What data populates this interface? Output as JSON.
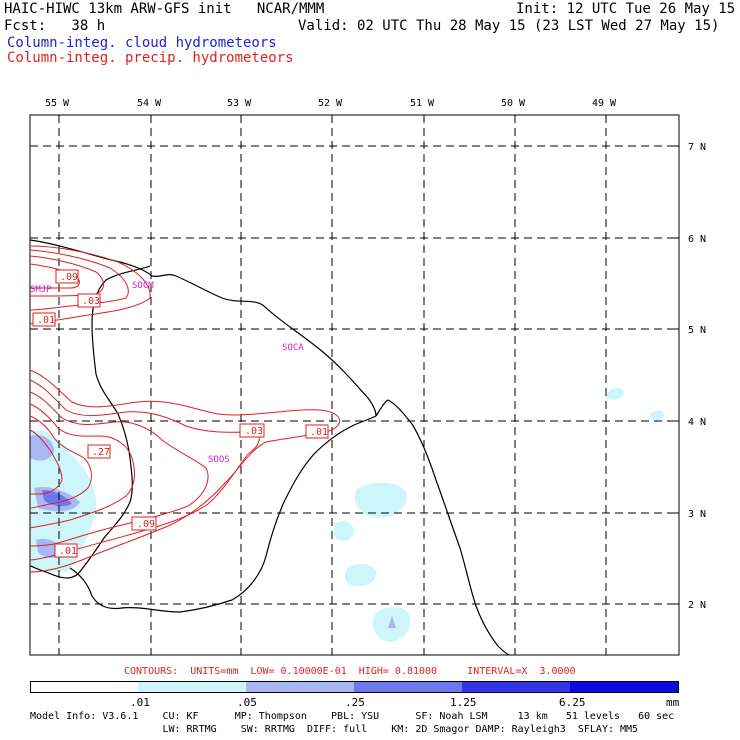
{
  "header": {
    "title": "HAIC-HIWC 13km ARW-GFS init   NCAR/MMM",
    "init": "Init: 12 UTC Tue 26 May 15",
    "fcst": "Fcst:   38 h",
    "valid": "Valid: 02 UTC Thu 28 May 15 (23 LST Wed 27 May 15)",
    "legend_cloud": "Column-integ. cloud hydrometeors",
    "legend_precip": "Column-integ. precip. hydrometeors"
  },
  "map": {
    "lon_labels": [
      "55 W",
      "54 W",
      "53 W",
      "52 W",
      "51 W",
      "50 W",
      "49 W"
    ],
    "lat_labels": [
      "7 N",
      "6 N",
      "5 N",
      "4 N",
      "3 N",
      "2 N"
    ],
    "stations": [
      "SMJP",
      "SOCM",
      "SOCA",
      "SOOS"
    ],
    "contour_labels": [
      ".09",
      ".03",
      ".01",
      ".27",
      ".03",
      ".01",
      ".09",
      ".01"
    ]
  },
  "contour_info": "CONTOURS:  UNITS=mm  LOW= 0.10000E-01  HIGH= 0.81000     INTERVAL=X  3.0000",
  "colorbar": {
    "labels": [
      ".01",
      ".05",
      ".25",
      "1.25",
      "6.25"
    ],
    "units": "mm",
    "colors": [
      "#ffffff",
      "#ccf6fa",
      "#a8b8f4",
      "#6c78ee",
      "#3434e8",
      "#0a0ae0"
    ]
  },
  "model_info": {
    "line1": "Model Info: V3.6.1    CU: KF      MP: Thompson    PBL: YSU      SF: Noah LSM     13 km   51 levels   60 sec",
    "line2": "                      LW: RRTMG    SW: RRTMG  DIFF: full    KM: 2D Smagor DAMP: Rayleigh3  SFLAY: MM5"
  },
  "colors": {
    "cloud": "#2222cc",
    "precip": "#dd2222",
    "station": "#cc22cc"
  }
}
